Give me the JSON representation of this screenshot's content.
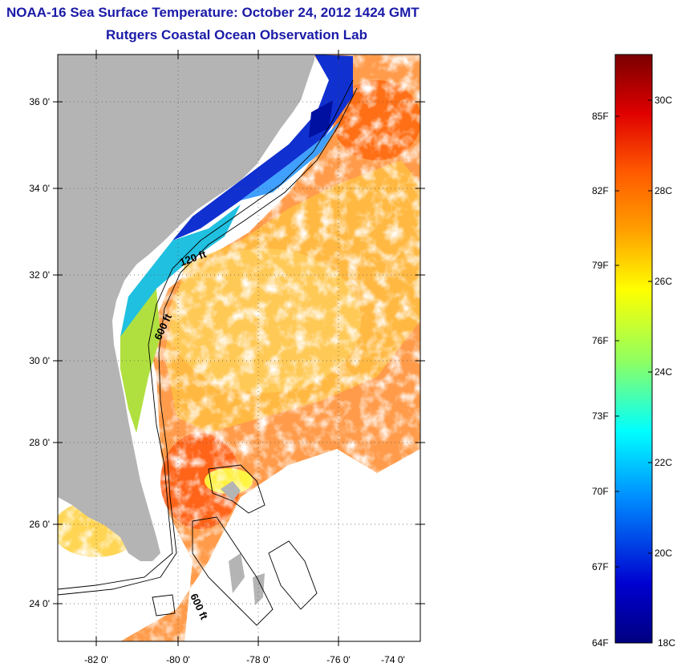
{
  "title_line1": "NOAA-16 Sea Surface Temperature:  October 24, 2012 1424 GMT",
  "title_line2": "Rutgers Coastal Ocean Observation Lab",
  "lat_ticks": [
    "36 0'",
    "34 0'",
    "32 0'",
    "30 0'",
    "28 0'",
    "26 0'",
    "24 0'"
  ],
  "lon_ticks": [
    "-82 0'",
    "-80 0'",
    "-78 0'",
    "-76 0'",
    "-74 0'"
  ],
  "contours": [
    "120 ft",
    "600 ft",
    "600 ft"
  ],
  "colorbar": {
    "fahrenheit": [
      "85F",
      "82F",
      "79F",
      "76F",
      "73F",
      "70F",
      "67F",
      "64F"
    ],
    "celsius": [
      "30C",
      "28C",
      "26C",
      "24C",
      "22C",
      "20C",
      "18C"
    ],
    "colors": [
      "#7a0000",
      "#e00000",
      "#ff5a00",
      "#ffa000",
      "#ffff00",
      "#90ff60",
      "#00ffff",
      "#0090ff",
      "#0000d0",
      "#000080"
    ]
  },
  "colors": {
    "land": "#b4b4b4",
    "title": "#1a1aa8",
    "cold": "#1030d0",
    "warm": "#ff6a20"
  }
}
